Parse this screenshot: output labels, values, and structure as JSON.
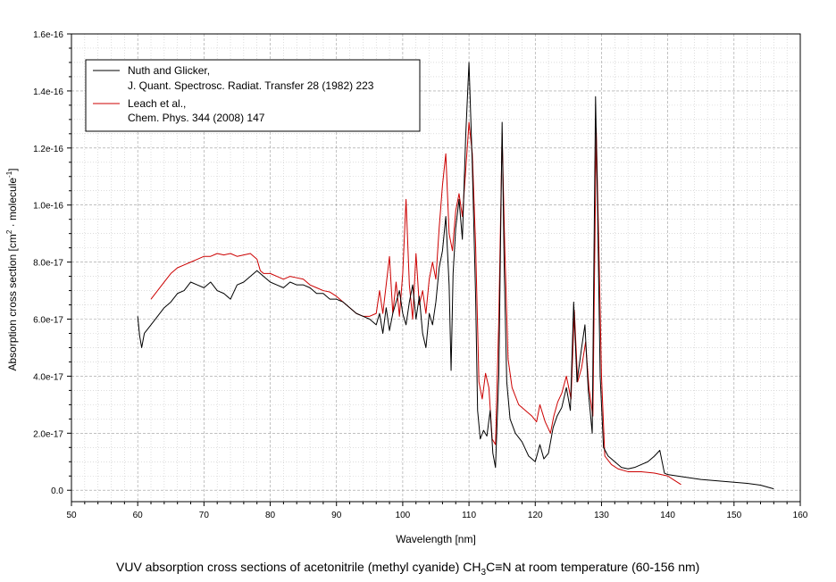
{
  "chart_data": {
    "type": "line",
    "caption": {
      "before": "VUV absorption cross sections of acetonitrile (methyl cyanide) CH",
      "sub": "3",
      "after": "C≡N at room temperature (60-156 nm)"
    },
    "xlabel": "Wavelength [nm]",
    "ylabel": {
      "before": "Absorption cross section [cm",
      "sup1": "2",
      "middle": " · molecule",
      "sup2": "-1",
      "after": "]"
    },
    "xlim": [
      50,
      160
    ],
    "ylim": [
      -4e-18,
      1.6e-16
    ],
    "x_ticks": [
      "50",
      "60",
      "70",
      "80",
      "90",
      "100",
      "110",
      "120",
      "130",
      "140",
      "150",
      "160"
    ],
    "y_ticks": [
      "0.0",
      "2.0e-17",
      "4.0e-17",
      "6.0e-17",
      "8.0e-17",
      "1.0e-16",
      "1.2e-16",
      "1.4e-16",
      "1.6e-16"
    ],
    "grid": true,
    "legend_position": "top-left",
    "series": [
      {
        "name": "Nuth and Glicker,",
        "name_line2": "J. Quant. Spectrosc. Radiat. Transfer 28 (1982) 223",
        "color": "#000000",
        "points": [
          [
            60,
            6.1e-17
          ],
          [
            60.3,
            5.4e-17
          ],
          [
            60.6,
            5e-17
          ],
          [
            61,
            5.5e-17
          ],
          [
            62,
            5.8e-17
          ],
          [
            63,
            6.1e-17
          ],
          [
            64,
            6.4e-17
          ],
          [
            65,
            6.6e-17
          ],
          [
            66,
            6.9e-17
          ],
          [
            67,
            7e-17
          ],
          [
            68,
            7.3e-17
          ],
          [
            69,
            7.2e-17
          ],
          [
            70,
            7.1e-17
          ],
          [
            71,
            7.3e-17
          ],
          [
            72,
            7e-17
          ],
          [
            73,
            6.9e-17
          ],
          [
            74,
            6.7e-17
          ],
          [
            75,
            7.2e-17
          ],
          [
            76,
            7.3e-17
          ],
          [
            77,
            7.5e-17
          ],
          [
            78,
            7.7e-17
          ],
          [
            79,
            7.5e-17
          ],
          [
            80,
            7.3e-17
          ],
          [
            81,
            7.2e-17
          ],
          [
            82,
            7.1e-17
          ],
          [
            83,
            7.3e-17
          ],
          [
            84,
            7.2e-17
          ],
          [
            85,
            7.2e-17
          ],
          [
            86,
            7.1e-17
          ],
          [
            87,
            6.9e-17
          ],
          [
            88,
            6.9e-17
          ],
          [
            89,
            6.7e-17
          ],
          [
            90,
            6.7e-17
          ],
          [
            91,
            6.6e-17
          ],
          [
            92,
            6.4e-17
          ],
          [
            93,
            6.2e-17
          ],
          [
            94,
            6.1e-17
          ],
          [
            95,
            6e-17
          ],
          [
            96,
            5.8e-17
          ],
          [
            96.5,
            6.2e-17
          ],
          [
            97,
            5.5e-17
          ],
          [
            97.5,
            6.4e-17
          ],
          [
            98,
            5.6e-17
          ],
          [
            98.5,
            6.2e-17
          ],
          [
            99,
            6.6e-17
          ],
          [
            99.5,
            7e-17
          ],
          [
            100,
            6.2e-17
          ],
          [
            100.5,
            5.8e-17
          ],
          [
            101,
            6.6e-17
          ],
          [
            101.5,
            7.2e-17
          ],
          [
            102,
            6e-17
          ],
          [
            102.5,
            6.8e-17
          ],
          [
            103,
            5.5e-17
          ],
          [
            103.5,
            5e-17
          ],
          [
            104,
            6.2e-17
          ],
          [
            104.5,
            5.8e-17
          ],
          [
            105,
            6.6e-17
          ],
          [
            105.5,
            7.8e-17
          ],
          [
            106,
            8.4e-17
          ],
          [
            106.5,
            9.6e-17
          ],
          [
            107,
            7.2e-17
          ],
          [
            107.3,
            4.2e-17
          ],
          [
            107.6,
            7.6e-17
          ],
          [
            108,
            9.2e-17
          ],
          [
            108.5,
            1.02e-16
          ],
          [
            109,
            8.8e-17
          ],
          [
            109.5,
            1.24e-16
          ],
          [
            110,
            1.5e-16
          ],
          [
            110.5,
            1.14e-16
          ],
          [
            111,
            6.8e-17
          ],
          [
            111.3,
            2.8e-17
          ],
          [
            111.7,
            1.8e-17
          ],
          [
            112.2,
            2.1e-17
          ],
          [
            112.7,
            1.9e-17
          ],
          [
            113.2,
            2.8e-17
          ],
          [
            113.6,
            1.3e-17
          ],
          [
            114,
            8e-18
          ],
          [
            114.5,
            4e-17
          ],
          [
            115,
            1.29e-16
          ],
          [
            115.3,
            8e-17
          ],
          [
            115.7,
            3.8e-17
          ],
          [
            116.2,
            2.5e-17
          ],
          [
            117,
            2e-17
          ],
          [
            118,
            1.7e-17
          ],
          [
            119,
            1.2e-17
          ],
          [
            120,
            1e-17
          ],
          [
            120.7,
            1.6e-17
          ],
          [
            121.3,
            1.1e-17
          ],
          [
            122,
            1.3e-17
          ],
          [
            122.7,
            2.2e-17
          ],
          [
            123.3,
            2.6e-17
          ],
          [
            124,
            2.9e-17
          ],
          [
            124.7,
            3.6e-17
          ],
          [
            125.3,
            2.8e-17
          ],
          [
            125.8,
            6.6e-17
          ],
          [
            126.3,
            3.8e-17
          ],
          [
            127,
            5e-17
          ],
          [
            127.5,
            5.8e-17
          ],
          [
            128,
            3.5e-17
          ],
          [
            128.6,
            2e-17
          ],
          [
            129.1,
            1.38e-16
          ],
          [
            129.4,
            1e-16
          ],
          [
            129.8,
            4e-17
          ],
          [
            130.3,
            1.5e-17
          ],
          [
            131,
            1.2e-17
          ],
          [
            132,
            1e-17
          ],
          [
            133,
            8e-18
          ],
          [
            134,
            7.5e-18
          ],
          [
            135,
            8e-18
          ],
          [
            136,
            9e-18
          ],
          [
            137,
            1e-17
          ],
          [
            138,
            1.2e-17
          ],
          [
            138.8,
            1.4e-17
          ],
          [
            139.5,
            6e-18
          ],
          [
            140,
            5.5e-18
          ],
          [
            142,
            4.8e-18
          ],
          [
            145,
            3.8e-18
          ],
          [
            148,
            3.2e-18
          ],
          [
            150,
            2.8e-18
          ],
          [
            152,
            2.4e-18
          ],
          [
            154,
            1.8e-18
          ],
          [
            156,
            5e-19
          ]
        ]
      },
      {
        "name": "Leach et al.,",
        "name_line2": "Chem. Phys. 344 (2008) 147",
        "color": "#cc0000",
        "points": [
          [
            62,
            6.7e-17
          ],
          [
            63,
            7e-17
          ],
          [
            64,
            7.3e-17
          ],
          [
            65,
            7.6e-17
          ],
          [
            66,
            7.8e-17
          ],
          [
            67,
            7.9e-17
          ],
          [
            68,
            8e-17
          ],
          [
            69,
            8.1e-17
          ],
          [
            70,
            8.2e-17
          ],
          [
            71,
            8.2e-17
          ],
          [
            72,
            8.3e-17
          ],
          [
            73,
            8.25e-17
          ],
          [
            74,
            8.3e-17
          ],
          [
            75,
            8.2e-17
          ],
          [
            76,
            8.25e-17
          ],
          [
            77,
            8.3e-17
          ],
          [
            78,
            8.1e-17
          ],
          [
            78.5,
            7.7e-17
          ],
          [
            79,
            7.6e-17
          ],
          [
            80,
            7.6e-17
          ],
          [
            81,
            7.5e-17
          ],
          [
            82,
            7.4e-17
          ],
          [
            83,
            7.5e-17
          ],
          [
            84,
            7.45e-17
          ],
          [
            85,
            7.4e-17
          ],
          [
            86,
            7.2e-17
          ],
          [
            87,
            7.1e-17
          ],
          [
            88,
            7e-17
          ],
          [
            89,
            6.95e-17
          ],
          [
            90,
            6.8e-17
          ],
          [
            91,
            6.6e-17
          ],
          [
            92,
            6.4e-17
          ],
          [
            93,
            6.2e-17
          ],
          [
            94,
            6.1e-17
          ],
          [
            95,
            6.1e-17
          ],
          [
            96,
            6.2e-17
          ],
          [
            96.5,
            7e-17
          ],
          [
            97,
            6.2e-17
          ],
          [
            98,
            8.2e-17
          ],
          [
            98.5,
            6.2e-17
          ],
          [
            99,
            7.3e-17
          ],
          [
            99.5,
            6.1e-17
          ],
          [
            100,
            7.6e-17
          ],
          [
            100.5,
            1.02e-16
          ],
          [
            101,
            7.2e-17
          ],
          [
            101.5,
            6e-17
          ],
          [
            102,
            8.3e-17
          ],
          [
            102.5,
            6.5e-17
          ],
          [
            103,
            7e-17
          ],
          [
            103.5,
            6.2e-17
          ],
          [
            104,
            7.4e-17
          ],
          [
            104.5,
            8e-17
          ],
          [
            105,
            7.4e-17
          ],
          [
            105.5,
            9.2e-17
          ],
          [
            106,
            1.07e-16
          ],
          [
            106.5,
            1.18e-16
          ],
          [
            107,
            9e-17
          ],
          [
            107.5,
            8.4e-17
          ],
          [
            108,
            9.8e-17
          ],
          [
            108.5,
            1.04e-16
          ],
          [
            109,
            9.6e-17
          ],
          [
            109.5,
            1.12e-16
          ],
          [
            110,
            1.29e-16
          ],
          [
            110.5,
            1.18e-16
          ],
          [
            111,
            8.6e-17
          ],
          [
            111.5,
            3.8e-17
          ],
          [
            112,
            3.2e-17
          ],
          [
            112.5,
            4.1e-17
          ],
          [
            113,
            3.6e-17
          ],
          [
            113.5,
            1.8e-17
          ],
          [
            114,
            1.6e-17
          ],
          [
            114.5,
            6e-17
          ],
          [
            115,
            1.25e-16
          ],
          [
            115.4,
            8.5e-17
          ],
          [
            115.9,
            4.6e-17
          ],
          [
            116.5,
            3.6e-17
          ],
          [
            117.5,
            3e-17
          ],
          [
            118.5,
            2.8e-17
          ],
          [
            119.5,
            2.6e-17
          ],
          [
            120.2,
            2.4e-17
          ],
          [
            120.7,
            3e-17
          ],
          [
            121.5,
            2.4e-17
          ],
          [
            122.3,
            2e-17
          ],
          [
            122.8,
            2.6e-17
          ],
          [
            123.4,
            3.1e-17
          ],
          [
            124,
            3.4e-17
          ],
          [
            124.7,
            4e-17
          ],
          [
            125.4,
            3.2e-17
          ],
          [
            125.9,
            6.3e-17
          ],
          [
            126.4,
            3.8e-17
          ],
          [
            127,
            4.3e-17
          ],
          [
            127.6,
            5.2e-17
          ],
          [
            128.1,
            3.6e-17
          ],
          [
            128.7,
            2.6e-17
          ],
          [
            129.2,
            1.27e-16
          ],
          [
            129.6,
            8.5e-17
          ],
          [
            130,
            4e-17
          ],
          [
            130.5,
            1.2e-17
          ],
          [
            131.5,
            9e-18
          ],
          [
            132.5,
            7.5e-18
          ],
          [
            134,
            6.5e-18
          ],
          [
            136,
            6.5e-18
          ],
          [
            138,
            6e-18
          ],
          [
            140,
            5e-18
          ],
          [
            141,
            3.5e-18
          ],
          [
            142,
            2e-18
          ]
        ]
      }
    ]
  }
}
